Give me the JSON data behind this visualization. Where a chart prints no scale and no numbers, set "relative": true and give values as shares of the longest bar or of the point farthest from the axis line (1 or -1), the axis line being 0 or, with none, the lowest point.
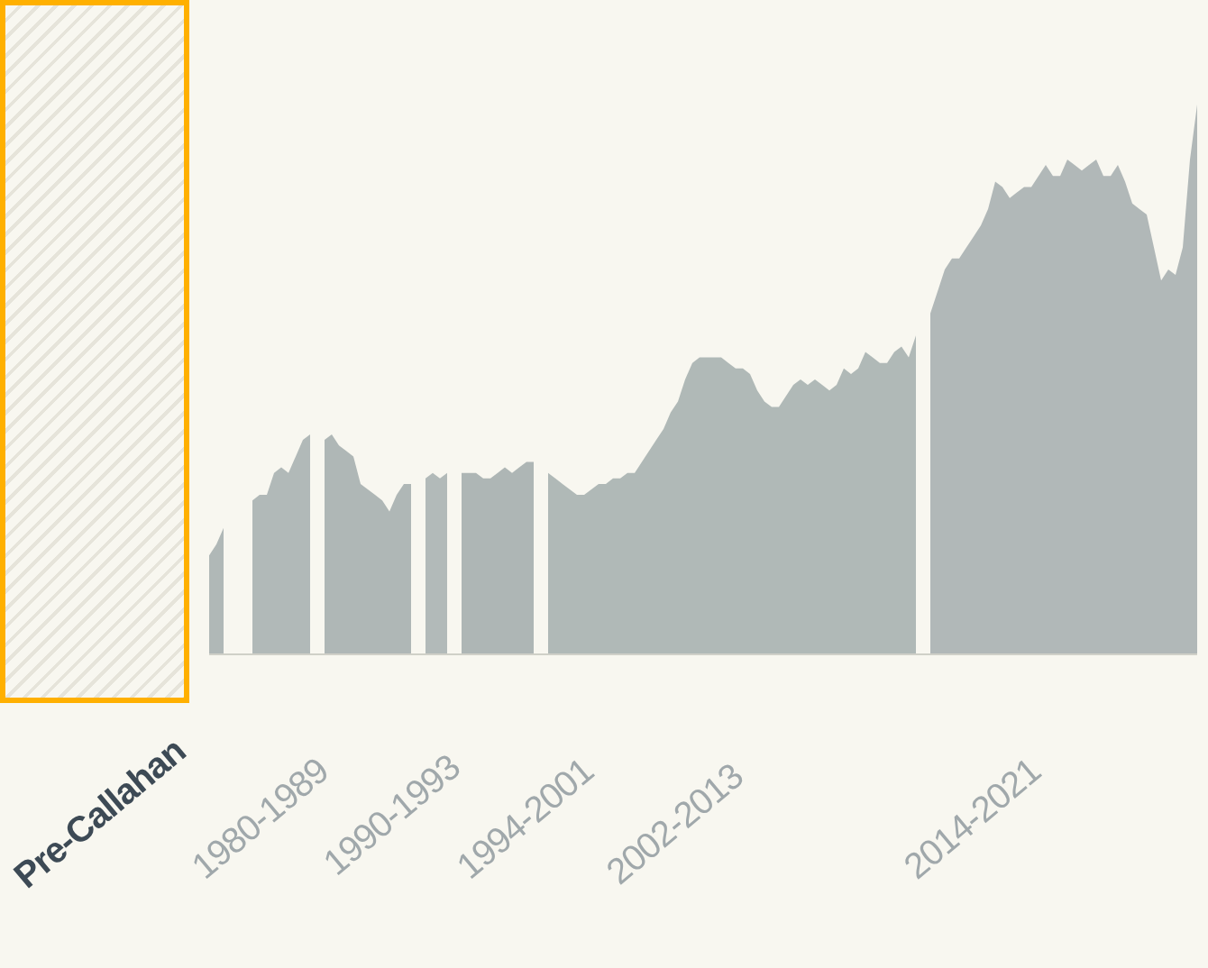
{
  "chart_data": {
    "type": "area",
    "relative": true,
    "categories": [
      null,
      null,
      null,
      null,
      null,
      null,
      null,
      null,
      null,
      null,
      null,
      null,
      null,
      null,
      null,
      null,
      null,
      null,
      null,
      null,
      null,
      null,
      null,
      null,
      null,
      null,
      null,
      null,
      null,
      null,
      null,
      null,
      null,
      null,
      null,
      null,
      null,
      null,
      null,
      null,
      null,
      null,
      null,
      null,
      null,
      null,
      null,
      null,
      null,
      null,
      null,
      null,
      null,
      null,
      null,
      null,
      null,
      null,
      null,
      null,
      null,
      null,
      null,
      null,
      null,
      null,
      null,
      null,
      null,
      null,
      null,
      null,
      null,
      null,
      null,
      null,
      null,
      null,
      null,
      null,
      null,
      null,
      null,
      null,
      null,
      null,
      null,
      null,
      null,
      null,
      null,
      null,
      null,
      null,
      null,
      null,
      null,
      null,
      null,
      null,
      null,
      null,
      null,
      null,
      null,
      null,
      null,
      null,
      null,
      null,
      null,
      null,
      null,
      null,
      null,
      null,
      null,
      null,
      null,
      null,
      null,
      null,
      null,
      null,
      null,
      null,
      null,
      null,
      null,
      null,
      null,
      null,
      null,
      null,
      null,
      null,
      null,
      null
    ],
    "series": [
      {
        "color": "#b0b8b7",
        "values": [
          0.18,
          0.2,
          0.23,
          null,
          null,
          null,
          null,
          null,
          null,
          null,
          null,
          null,
          null,
          null,
          null,
          null,
          null,
          null,
          null,
          null,
          null,
          null,
          null,
          null,
          null,
          null,
          null,
          null,
          null,
          null,
          null,
          null,
          null,
          null,
          null,
          null,
          null,
          null,
          null,
          null,
          null,
          null,
          null,
          null,
          null,
          null,
          null,
          null,
          null,
          null,
          null,
          null,
          null,
          null,
          null,
          null,
          null,
          null,
          null,
          null,
          null,
          null,
          null,
          null,
          null,
          null,
          null,
          null,
          null,
          null,
          null,
          null,
          null,
          null,
          null,
          null,
          null,
          null,
          null,
          null,
          null,
          null,
          null,
          null,
          null,
          null,
          null,
          null,
          null,
          null,
          null,
          null,
          null,
          null,
          null,
          null,
          null,
          null,
          null,
          null,
          null,
          null,
          null,
          null,
          null,
          null,
          null,
          null,
          null,
          null,
          null,
          null,
          null,
          null,
          null,
          null,
          null,
          null,
          null,
          null,
          null,
          null,
          null,
          null,
          null,
          null,
          null,
          null,
          null,
          null,
          null,
          null,
          null,
          null,
          null,
          null,
          null,
          null
        ]
      },
      {
        "color": "#b1b9b8",
        "values": [
          null,
          null,
          null,
          null,
          null,
          null,
          0.28,
          0.29,
          0.29,
          0.33,
          0.34,
          0.33,
          0.36,
          0.39,
          0.4,
          null,
          null,
          null,
          null,
          null,
          null,
          null,
          null,
          null,
          null,
          null,
          null,
          null,
          null,
          null,
          null,
          null,
          null,
          null,
          null,
          null,
          null,
          null,
          null,
          null,
          null,
          null,
          null,
          null,
          null,
          null,
          null,
          null,
          null,
          null,
          null,
          null,
          null,
          null,
          null,
          null,
          null,
          null,
          null,
          null,
          null,
          null,
          null,
          null,
          null,
          null,
          null,
          null,
          null,
          null,
          null,
          null,
          null,
          null,
          null,
          null,
          null,
          null,
          null,
          null,
          null,
          null,
          null,
          null,
          null,
          null,
          null,
          null,
          null,
          null,
          null,
          null,
          null,
          null,
          null,
          null,
          null,
          null,
          null,
          null,
          null,
          null,
          null,
          null,
          null,
          null,
          null,
          null,
          null,
          null,
          null,
          null,
          null,
          null,
          null,
          null,
          null,
          null,
          null,
          null,
          null,
          null,
          null,
          null,
          null,
          null,
          null,
          null,
          null,
          null,
          null,
          null,
          null,
          null,
          null,
          null,
          null,
          null
        ]
      },
      {
        "color": "#afb7b6",
        "values": [
          null,
          null,
          null,
          null,
          null,
          null,
          null,
          null,
          null,
          null,
          null,
          null,
          null,
          null,
          null,
          null,
          0.39,
          0.4,
          0.38,
          0.37,
          0.36,
          0.31,
          0.3,
          0.29,
          0.28,
          0.26,
          0.29,
          0.31,
          0.31,
          null,
          null,
          null,
          null,
          null,
          null,
          null,
          null,
          null,
          null,
          null,
          null,
          null,
          null,
          null,
          null,
          null,
          null,
          null,
          null,
          null,
          null,
          null,
          null,
          null,
          null,
          null,
          null,
          null,
          null,
          null,
          null,
          null,
          null,
          null,
          null,
          null,
          null,
          null,
          null,
          null,
          null,
          null,
          null,
          null,
          null,
          null,
          null,
          null,
          null,
          null,
          null,
          null,
          null,
          null,
          null,
          null,
          null,
          null,
          null,
          null,
          null,
          null,
          null,
          null,
          null,
          null,
          null,
          null,
          null,
          null,
          null,
          null,
          null,
          null,
          null,
          null,
          null,
          null,
          null,
          null,
          null,
          null,
          null,
          null,
          null,
          null,
          null,
          null,
          null,
          null,
          null,
          null,
          null,
          null,
          null,
          null,
          null,
          null,
          null,
          null,
          null,
          null,
          null,
          null,
          null,
          null,
          null,
          null
        ]
      },
      {
        "color": "#b2bab9",
        "values": [
          null,
          null,
          null,
          null,
          null,
          null,
          null,
          null,
          null,
          null,
          null,
          null,
          null,
          null,
          null,
          null,
          null,
          null,
          null,
          null,
          null,
          null,
          null,
          null,
          null,
          null,
          null,
          null,
          null,
          null,
          0.32,
          0.33,
          0.32,
          0.33,
          null,
          null,
          null,
          null,
          null,
          null,
          null,
          null,
          null,
          null,
          null,
          null,
          null,
          null,
          null,
          null,
          null,
          null,
          null,
          null,
          null,
          null,
          null,
          null,
          null,
          null,
          null,
          null,
          null,
          null,
          null,
          null,
          null,
          null,
          null,
          null,
          null,
          null,
          null,
          null,
          null,
          null,
          null,
          null,
          null,
          null,
          null,
          null,
          null,
          null,
          null,
          null,
          null,
          null,
          null,
          null,
          null,
          null,
          null,
          null,
          null,
          null,
          null,
          null,
          null,
          null,
          null,
          null,
          null,
          null,
          null,
          null,
          null,
          null,
          null,
          null,
          null,
          null,
          null,
          null,
          null,
          null,
          null,
          null,
          null,
          null,
          null,
          null,
          null,
          null,
          null,
          null,
          null,
          null,
          null,
          null,
          null,
          null,
          null,
          null,
          null,
          null,
          null,
          null
        ]
      },
      {
        "color": "#aeb6b5",
        "values": [
          null,
          null,
          null,
          null,
          null,
          null,
          null,
          null,
          null,
          null,
          null,
          null,
          null,
          null,
          null,
          null,
          null,
          null,
          null,
          null,
          null,
          null,
          null,
          null,
          null,
          null,
          null,
          null,
          null,
          null,
          null,
          null,
          null,
          null,
          null,
          0.33,
          0.33,
          0.33,
          0.32,
          0.32,
          0.33,
          0.34,
          0.33,
          0.34,
          0.35,
          0.35,
          null,
          null,
          null,
          null,
          null,
          null,
          null,
          null,
          null,
          null,
          null,
          null,
          null,
          null,
          null,
          null,
          null,
          null,
          null,
          null,
          null,
          null,
          null,
          null,
          null,
          null,
          null,
          null,
          null,
          null,
          null,
          null,
          null,
          null,
          null,
          null,
          null,
          null,
          null,
          null,
          null,
          null,
          null,
          null,
          null,
          null,
          null,
          null,
          null,
          null,
          null,
          null,
          null,
          null,
          null,
          null,
          null,
          null,
          null,
          null,
          null,
          null,
          null,
          null,
          null,
          null,
          null,
          null,
          null,
          null,
          null,
          null,
          null,
          null,
          null,
          null,
          null,
          null,
          null,
          null,
          null,
          null,
          null,
          null,
          null,
          null,
          null,
          null,
          null,
          null,
          null,
          null
        ]
      },
      {
        "color": "#b0b9b7",
        "values": [
          null,
          null,
          null,
          null,
          null,
          null,
          null,
          null,
          null,
          null,
          null,
          null,
          null,
          null,
          null,
          null,
          null,
          null,
          null,
          null,
          null,
          null,
          null,
          null,
          null,
          null,
          null,
          null,
          null,
          null,
          null,
          null,
          null,
          null,
          null,
          null,
          null,
          null,
          null,
          null,
          null,
          null,
          null,
          null,
          null,
          null,
          null,
          0.33,
          0.32,
          0.31,
          0.3,
          0.29,
          0.29,
          0.3,
          0.31,
          0.31,
          0.32,
          0.32,
          0.33,
          0.33,
          0.35,
          0.37,
          0.39,
          0.41,
          0.44,
          0.46,
          0.5,
          0.53,
          0.54,
          0.54,
          0.54,
          0.54,
          0.53,
          0.52,
          0.52,
          0.51,
          0.48,
          0.46,
          0.45,
          0.45,
          0.47,
          0.49,
          0.5,
          0.49,
          0.5,
          0.49,
          0.48,
          0.49,
          0.52,
          0.51,
          0.52,
          0.55,
          0.54,
          0.53,
          0.53,
          0.55,
          0.56,
          0.54,
          0.58,
          null,
          null,
          null,
          null,
          null,
          null,
          null,
          null,
          null,
          null,
          null,
          null,
          null,
          null,
          null,
          null,
          null,
          null,
          null,
          null,
          null,
          null,
          null,
          null,
          null,
          null,
          null,
          null,
          null,
          null,
          null,
          null,
          null,
          null,
          null,
          null,
          null,
          null,
          null
        ]
      },
      {
        "color": "#b1b8b8",
        "values": [
          null,
          null,
          null,
          null,
          null,
          null,
          null,
          null,
          null,
          null,
          null,
          null,
          null,
          null,
          null,
          null,
          null,
          null,
          null,
          null,
          null,
          null,
          null,
          null,
          null,
          null,
          null,
          null,
          null,
          null,
          null,
          null,
          null,
          null,
          null,
          null,
          null,
          null,
          null,
          null,
          null,
          null,
          null,
          null,
          null,
          null,
          null,
          null,
          null,
          null,
          null,
          null,
          null,
          null,
          null,
          null,
          null,
          null,
          null,
          null,
          null,
          null,
          null,
          null,
          null,
          null,
          null,
          null,
          null,
          null,
          null,
          null,
          null,
          null,
          null,
          null,
          null,
          null,
          null,
          null,
          null,
          null,
          null,
          null,
          null,
          null,
          null,
          null,
          null,
          null,
          null,
          null,
          null,
          null,
          null,
          null,
          null,
          null,
          null,
          null,
          0.62,
          0.66,
          0.7,
          0.72,
          0.72,
          0.74,
          0.76,
          0.78,
          0.81,
          0.86,
          0.85,
          0.83,
          0.84,
          0.85,
          0.85,
          0.87,
          0.89,
          0.87,
          0.87,
          0.9,
          0.89,
          0.88,
          0.89,
          0.9,
          0.87,
          0.87,
          0.89,
          0.86,
          0.82,
          0.81,
          0.8,
          0.74,
          0.68,
          0.7,
          0.69,
          0.74,
          0.9,
          1
        ]
      }
    ],
    "annotations": [
      "Pre-Callahan",
      "1980-1989",
      "1990-1993",
      "1994-2001",
      "2002-2013",
      "2014-2021"
    ]
  }
}
